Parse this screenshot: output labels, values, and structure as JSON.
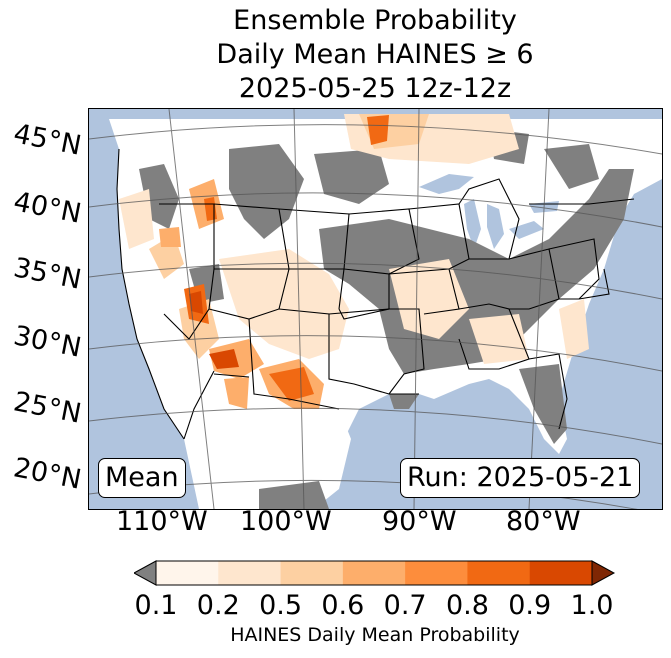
{
  "title": {
    "line1": "Ensemble Probability",
    "line2": "Daily Mean HAINES ≥ 6",
    "line3": "2025-05-25 12z-12z"
  },
  "map": {
    "statistic_label": "Mean",
    "run_label": "Run: 2025-05-21",
    "latitude_labels": [
      "45°N",
      "40°N",
      "35°N",
      "30°N",
      "25°N",
      "20°N"
    ],
    "longitude_labels": [
      "110°W",
      "100°W",
      "90°W",
      "80°W"
    ],
    "colors": {
      "ocean": "#b0c4de",
      "no_data_gray": "#808080",
      "land_white": "#ffffff"
    }
  },
  "colorbar": {
    "label": "HAINES Daily Mean Probability",
    "ticks": [
      "0.1",
      "0.2",
      "0.5",
      "0.6",
      "0.7",
      "0.8",
      "0.9",
      "1.0"
    ],
    "under_color": "#808080",
    "over_color": "#7f2704",
    "colors": [
      "#fff5eb",
      "#fee6ce",
      "#fdd0a2",
      "#fdae6b",
      "#fd8d3c",
      "#f16913",
      "#d94801"
    ]
  }
}
